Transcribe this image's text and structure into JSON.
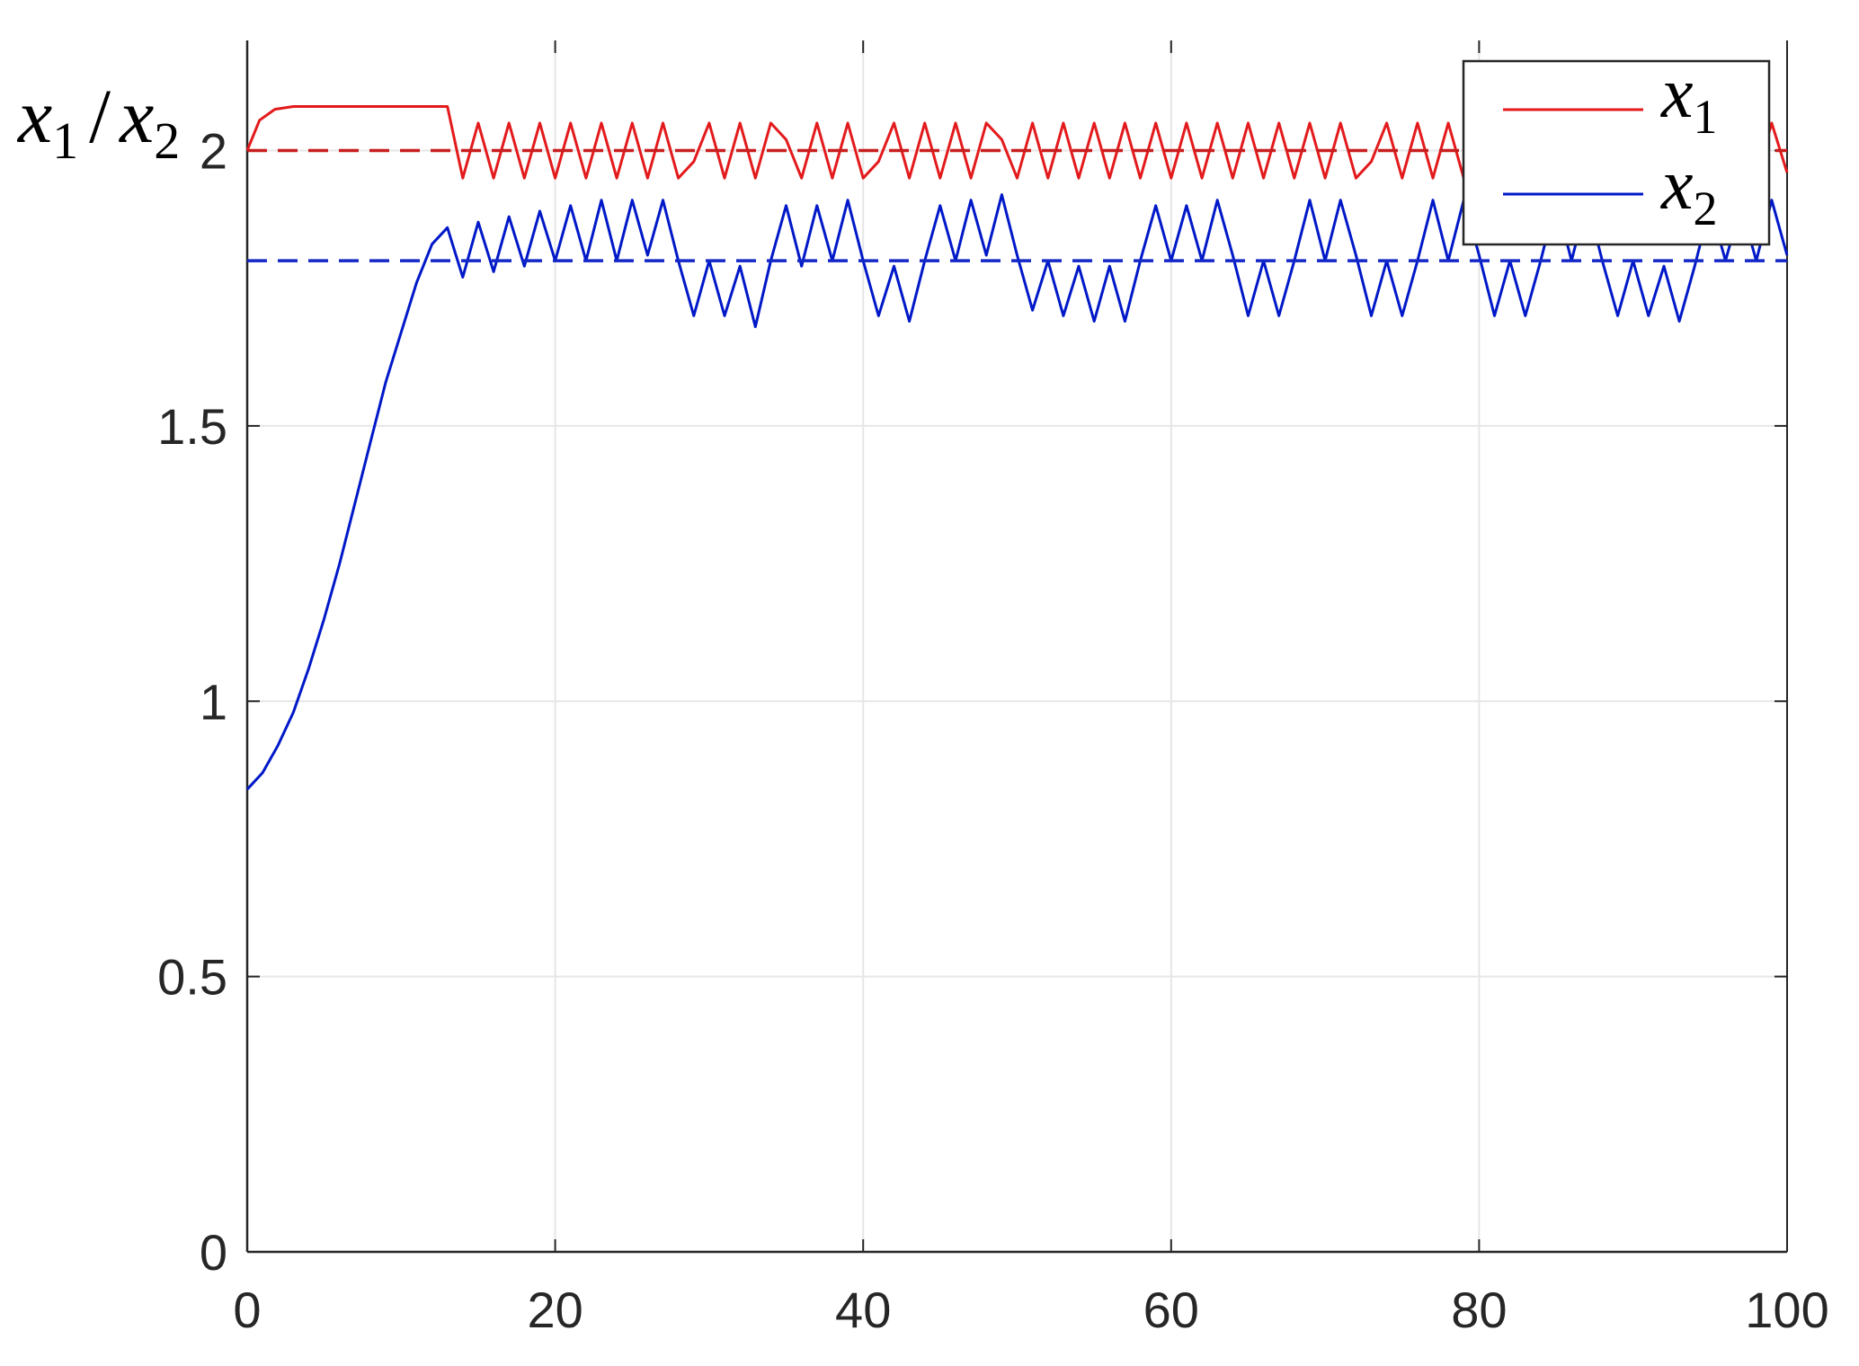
{
  "chart_data": {
    "type": "line",
    "title": "",
    "xlabel": "",
    "ylabel": {
      "var1": "x",
      "sub1": "1",
      "sep": "/",
      "var2": "x",
      "sub2": "2"
    },
    "xlim": [
      0,
      100
    ],
    "ylim": [
      0,
      2.2
    ],
    "xticks": [
      0,
      20,
      40,
      60,
      80,
      100
    ],
    "xtick_labels": [
      "0",
      "20",
      "40",
      "60",
      "80",
      "100"
    ],
    "yticks": [
      0,
      0.5,
      1,
      1.5,
      2
    ],
    "ytick_labels": [
      "0",
      "0.5",
      "1",
      "1.5",
      "2"
    ],
    "grid": true,
    "legend_position": "top-right",
    "series": [
      {
        "name": "x1",
        "legend": {
          "var": "x",
          "sub": "1"
        },
        "color": "#e31a1c",
        "style": "solid",
        "x": [
          0,
          0.8,
          1.8,
          3,
          13,
          14,
          15,
          16,
          17,
          18,
          19,
          20,
          21,
          22,
          23,
          24,
          25,
          26,
          27,
          28,
          29,
          30,
          31,
          32,
          33,
          34,
          35,
          36,
          37,
          38,
          39,
          40,
          41,
          42,
          43,
          44,
          45,
          46,
          47,
          48,
          49,
          50,
          51,
          52,
          53,
          54,
          55,
          56,
          57,
          58,
          59,
          60,
          61,
          62,
          63,
          64,
          65,
          66,
          67,
          68,
          69,
          70,
          71,
          72,
          73,
          74,
          75,
          76,
          77,
          78,
          79,
          80,
          81,
          82,
          83,
          84,
          85,
          86,
          87,
          88,
          89,
          90,
          91,
          92,
          93,
          94,
          95,
          96,
          97,
          98,
          99,
          100
        ],
        "y": [
          2.0,
          2.055,
          2.075,
          2.08,
          2.08,
          1.95,
          2.05,
          1.95,
          2.05,
          1.95,
          2.05,
          1.95,
          2.05,
          1.95,
          2.05,
          1.95,
          2.05,
          1.95,
          2.05,
          1.95,
          1.98,
          2.05,
          1.95,
          2.05,
          1.95,
          2.05,
          2.02,
          1.95,
          2.05,
          1.95,
          2.05,
          1.95,
          1.98,
          2.05,
          1.95,
          2.05,
          1.95,
          2.05,
          1.95,
          2.05,
          2.02,
          1.95,
          2.05,
          1.95,
          2.05,
          1.95,
          2.05,
          1.95,
          2.05,
          1.95,
          2.05,
          1.95,
          2.05,
          1.95,
          2.05,
          1.95,
          2.05,
          1.95,
          2.05,
          1.95,
          2.05,
          1.95,
          2.05,
          1.95,
          1.98,
          2.05,
          1.95,
          2.05,
          1.95,
          2.05,
          1.95,
          2.05,
          1.95,
          2.05,
          1.95,
          2.05,
          1.95,
          2.05,
          1.95,
          2.05,
          1.95,
          1.98,
          2.05,
          1.95,
          2.05,
          1.95,
          2.05,
          1.95,
          2.05,
          1.95,
          2.05,
          1.96
        ]
      },
      {
        "name": "x2",
        "legend": {
          "var": "x",
          "sub": "2"
        },
        "color": "#0018c8",
        "style": "solid",
        "x": [
          0,
          1,
          2,
          3,
          4,
          5,
          6,
          7,
          8,
          9,
          10,
          11,
          12,
          13,
          14,
          15,
          16,
          17,
          18,
          19,
          20,
          21,
          22,
          23,
          24,
          25,
          26,
          27,
          28,
          29,
          30,
          31,
          32,
          33,
          34,
          35,
          36,
          37,
          38,
          39,
          40,
          41,
          42,
          43,
          44,
          45,
          46,
          47,
          48,
          49,
          50,
          51,
          52,
          53,
          54,
          55,
          56,
          57,
          58,
          59,
          60,
          61,
          62,
          63,
          64,
          65,
          66,
          67,
          68,
          69,
          70,
          71,
          72,
          73,
          74,
          75,
          76,
          77,
          78,
          79,
          80,
          81,
          82,
          83,
          84,
          85,
          86,
          87,
          88,
          89,
          90,
          91,
          92,
          93,
          94,
          95,
          96,
          97,
          98,
          99,
          100
        ],
        "y": [
          0.84,
          0.87,
          0.92,
          0.98,
          1.06,
          1.15,
          1.25,
          1.36,
          1.47,
          1.58,
          1.67,
          1.76,
          1.83,
          1.86,
          1.77,
          1.87,
          1.78,
          1.88,
          1.79,
          1.89,
          1.8,
          1.9,
          1.8,
          1.91,
          1.8,
          1.91,
          1.81,
          1.91,
          1.8,
          1.7,
          1.8,
          1.7,
          1.79,
          1.68,
          1.8,
          1.9,
          1.79,
          1.9,
          1.8,
          1.91,
          1.8,
          1.7,
          1.79,
          1.69,
          1.8,
          1.9,
          1.8,
          1.91,
          1.81,
          1.92,
          1.81,
          1.71,
          1.8,
          1.7,
          1.79,
          1.69,
          1.79,
          1.69,
          1.8,
          1.9,
          1.8,
          1.9,
          1.8,
          1.91,
          1.81,
          1.7,
          1.8,
          1.7,
          1.8,
          1.91,
          1.8,
          1.91,
          1.81,
          1.7,
          1.8,
          1.7,
          1.8,
          1.91,
          1.8,
          1.91,
          1.81,
          1.7,
          1.8,
          1.7,
          1.8,
          1.91,
          1.8,
          1.91,
          1.8,
          1.7,
          1.8,
          1.7,
          1.79,
          1.69,
          1.79,
          1.9,
          1.8,
          1.9,
          1.8,
          1.91,
          1.81
        ]
      },
      {
        "name": "",
        "color": "#c81e1e",
        "style": "dashed",
        "x": [
          0,
          100
        ],
        "y": [
          2.0,
          2.0
        ]
      },
      {
        "name": "",
        "color": "#1428c8",
        "style": "dashed",
        "x": [
          0,
          100
        ],
        "y": [
          1.8,
          1.8
        ]
      }
    ]
  }
}
